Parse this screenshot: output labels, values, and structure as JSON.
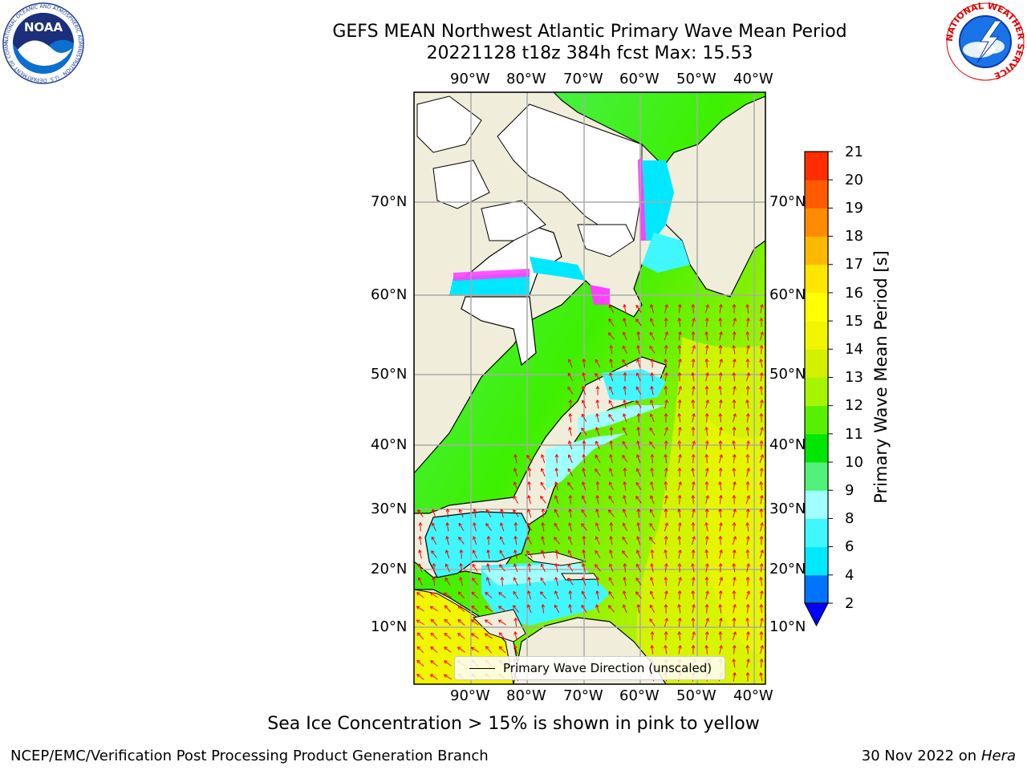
{
  "header": {
    "title_line1": "GEFS MEAN Northwest Atlantic Primary Wave Mean Period",
    "title_line2": "20221128 t18z 384h fcst   Max: 15.53"
  },
  "map": {
    "lon_labels": [
      "90°W",
      "80°W",
      "70°W",
      "60°W",
      "50°W",
      "40°W"
    ],
    "lat_labels": [
      "70°N",
      "60°N",
      "50°N",
      "40°N",
      "30°N",
      "20°N",
      "10°N"
    ],
    "legend_label": "Primary Wave Direction (unscaled)",
    "colors": {
      "land": "#f0eedb",
      "ice": "#ffffff",
      "grid": "#aaaaaa",
      "arrow": "#ff0000"
    }
  },
  "colorbar": {
    "title": "Primary Wave Mean Period [s]",
    "levels": [
      "2",
      "4",
      "6",
      "8",
      "9",
      "10",
      "11",
      "12",
      "13",
      "14",
      "15",
      "16",
      "17",
      "18",
      "19",
      "20",
      "21"
    ],
    "colors": [
      "#0073ff",
      "#00e8ff",
      "#40f7ff",
      "#a0ffff",
      "#50f27a",
      "#00e600",
      "#56f000",
      "#a5f500",
      "#d2f000",
      "#f0f500",
      "#ffff00",
      "#ffe600",
      "#ffb800",
      "#ff8c00",
      "#ff5a00",
      "#ff2d00"
    ],
    "under_color": "#0000ff"
  },
  "notes": {
    "ice_note": "Sea Ice Concentration > 15% is shown in pink to yellow"
  },
  "footer": {
    "org": "NCEP/EMC/Verification Post Processing Product Generation Branch",
    "date": "30 Nov 2022 on",
    "machine": "Hera"
  },
  "logos": {
    "noaa_text": "NOAA",
    "noaa_ring_text": "NATIONAL OCEANIC AND ATMOSPHERIC ADMINISTRATION · U.S. DEPARTMENT OF COMMERCE",
    "nws_ring_text": "NATIONAL WEATHER SERVICE"
  }
}
